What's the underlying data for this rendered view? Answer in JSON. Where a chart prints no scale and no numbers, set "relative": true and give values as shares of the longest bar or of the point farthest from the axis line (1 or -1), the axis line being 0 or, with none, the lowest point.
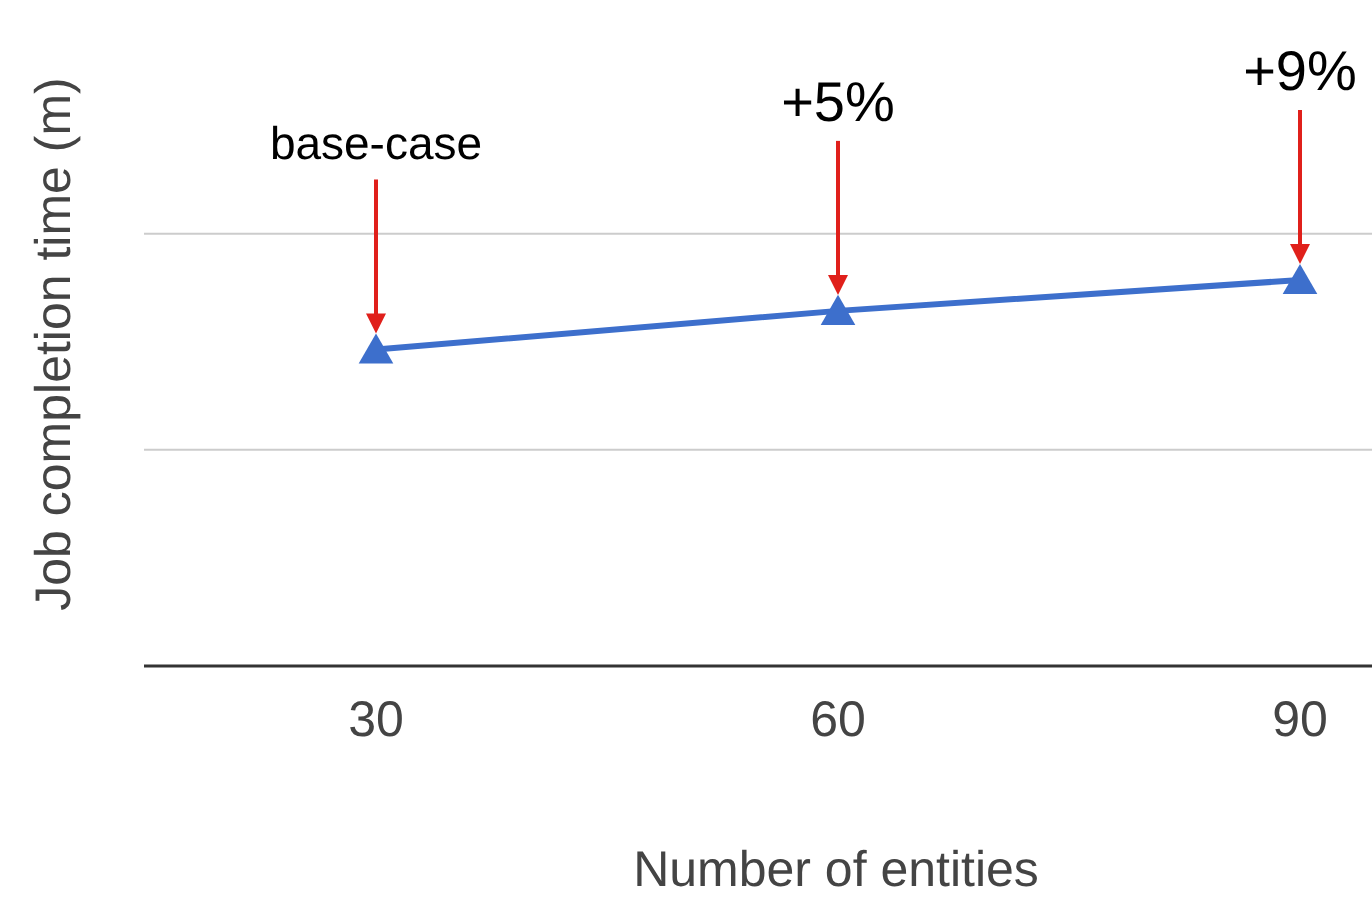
{
  "chart_data": {
    "type": "line",
    "relative": true,
    "xlabel": "Number of entities",
    "ylabel": "Job completion time (m)",
    "categories": [
      "30",
      "60",
      "90"
    ],
    "series": [
      {
        "color": "#3d6fcc",
        "values": [
          0.82,
          0.92,
          1
        ]
      }
    ],
    "marker": "triangle",
    "tick_labels": "x",
    "ref_lines": [
      {
        "axis": "y",
        "value": 0.56,
        "color": "#cccccc"
      },
      {
        "axis": "y",
        "value": 1.12,
        "color": "#cccccc"
      }
    ],
    "annotations": [
      "base-case",
      "+5%",
      "+9%"
    ]
  }
}
